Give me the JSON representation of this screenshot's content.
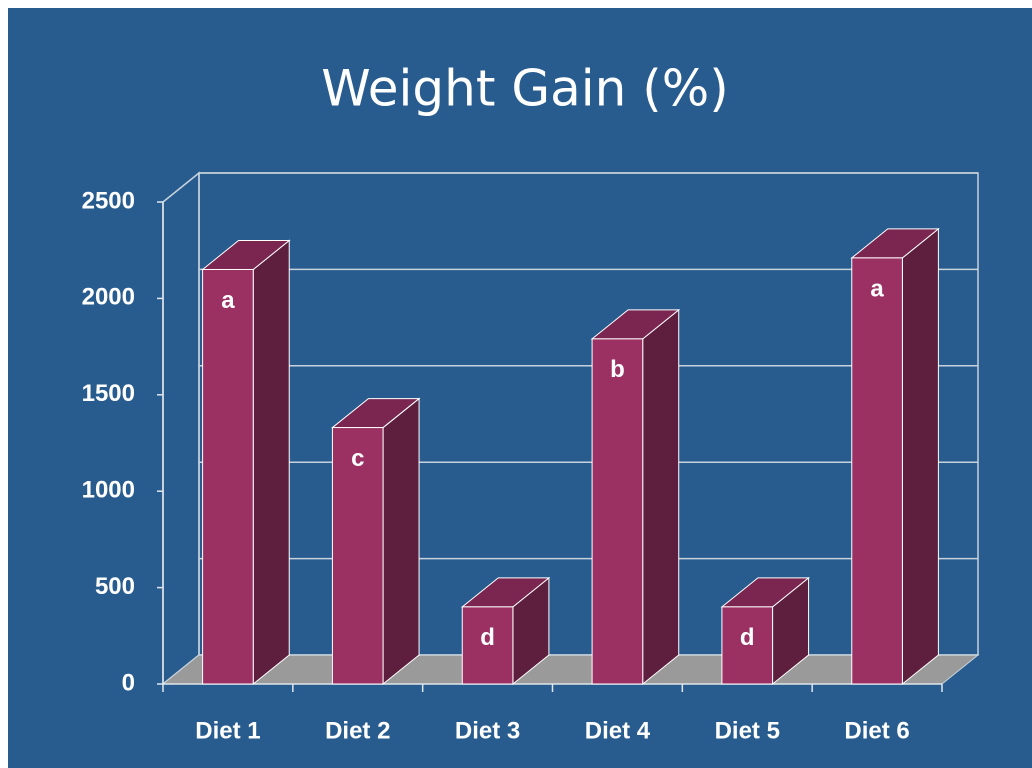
{
  "chart_data": {
    "type": "bar3d",
    "title": "Weight Gain (%)",
    "categories": [
      "Diet 1",
      "Diet 2",
      "Diet 3",
      "Diet 4",
      "Diet 5",
      "Diet 6"
    ],
    "values": [
      2150,
      1330,
      400,
      1790,
      400,
      2210
    ],
    "letters": [
      "a",
      "c",
      "d",
      "b",
      "d",
      "a"
    ],
    "color": "#9b3063",
    "ylim": [
      0,
      2500
    ],
    "yticks": [
      0,
      500,
      1000,
      1500,
      2000,
      2500
    ],
    "grid": true
  }
}
